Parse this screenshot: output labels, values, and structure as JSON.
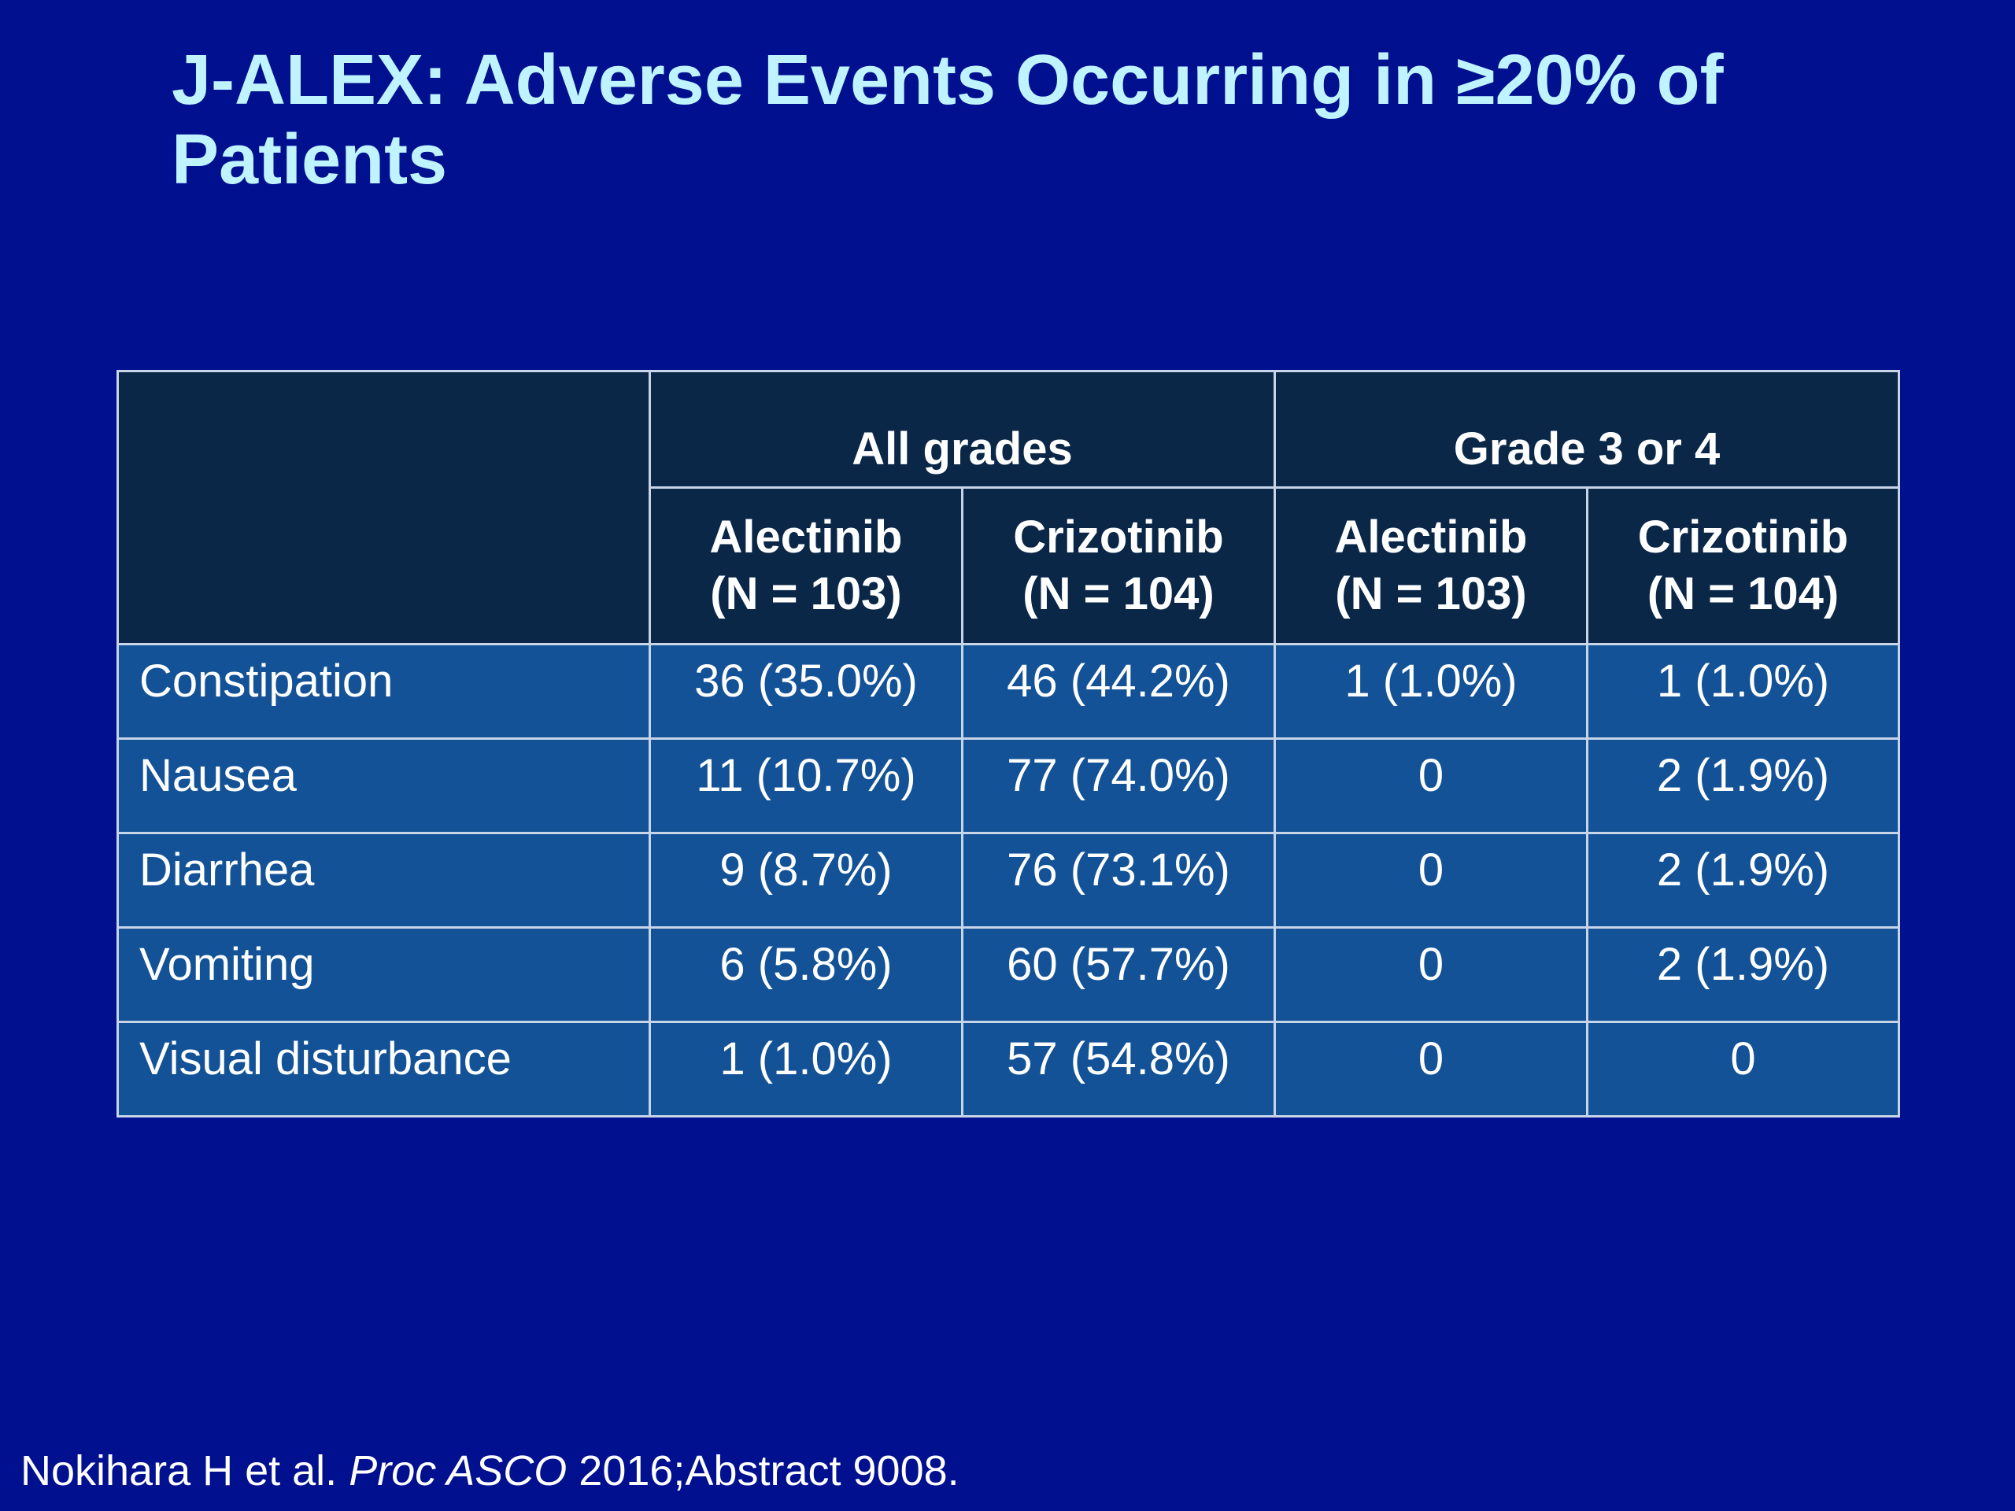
{
  "title": "J-ALEX: Adverse Events Occurring in ≥20% of Patients",
  "table": {
    "group_headers": [
      "All grades",
      "Grade 3 or 4"
    ],
    "sub_headers": [
      {
        "drug": "Alectinib",
        "n": "(N = 103)"
      },
      {
        "drug": "Crizotinib",
        "n": "(N = 104)"
      },
      {
        "drug": "Alectinib",
        "n": "(N = 103)"
      },
      {
        "drug": "Crizotinib",
        "n": "(N = 104)"
      }
    ],
    "rows": [
      {
        "event": "Constipation",
        "values": [
          "36 (35.0%)",
          "46 (44.2%)",
          "1 (1.0%)",
          "1 (1.0%)"
        ]
      },
      {
        "event": "Nausea",
        "values": [
          "11 (10.7%)",
          "77 (74.0%)",
          "0",
          "2 (1.9%)"
        ]
      },
      {
        "event": "Diarrhea",
        "values": [
          "9 (8.7%)",
          "76 (73.1%)",
          "0",
          "2 (1.9%)"
        ]
      },
      {
        "event": "Vomiting",
        "values": [
          "6 (5.8%)",
          "60 (57.7%)",
          "0",
          "2 (1.9%)"
        ]
      },
      {
        "event": "Visual disturbance",
        "values": [
          "1 (1.0%)",
          "57 (54.8%)",
          "0",
          "0"
        ]
      }
    ]
  },
  "footer": {
    "authors": "Nokihara H et al.",
    "journal": "Proc ASCO",
    "citation": "2016;Abstract 9008."
  },
  "colors": {
    "background": "#00108f",
    "title": "#bff3ff",
    "header_fill": "#0a2748",
    "body_fill": "#135296",
    "grid": "#c8d4e8"
  }
}
